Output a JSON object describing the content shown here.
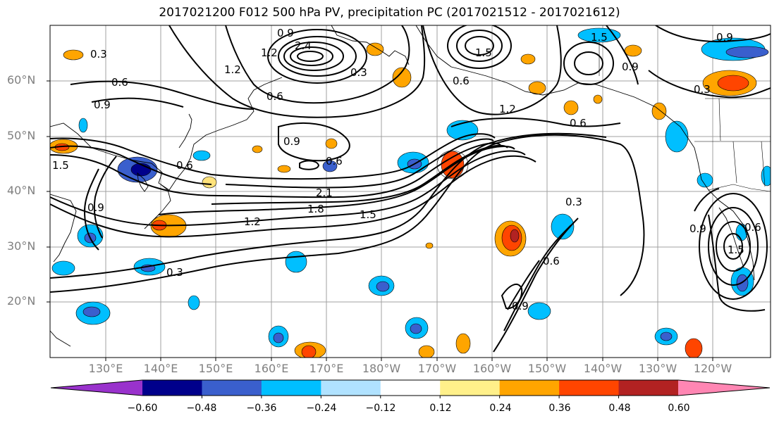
{
  "title": "2017021200 F012 500 hPa PV, precipitation PC (2017021512 - 2017021612)",
  "lat_labels": [
    "60°N",
    "50°N",
    "40°N",
    "30°N",
    "20°N"
  ],
  "lon_labels": [
    "130°E",
    "140°E",
    "150°E",
    "160°E",
    "170°E",
    "180°W",
    "170°W",
    "160°W",
    "150°W",
    "140°W",
    "130°W",
    "120°W"
  ],
  "colorbar": {
    "ticks": [
      "−0.60",
      "−0.48",
      "−0.36",
      "−0.24",
      "−0.12",
      "0.12",
      "0.24",
      "0.36",
      "0.48",
      "0.60"
    ],
    "colors": [
      "#9932cc",
      "#00008b",
      "#3a5fcd",
      "#00bfff",
      "#b0e2ff",
      "#ffffff",
      "#fff08a",
      "#ffa500",
      "#ff4500",
      "#b22222",
      "#ff86b3"
    ]
  },
  "contour_labels": {
    "c1": "0.3",
    "c2": "0.6",
    "c3": "0.9",
    "c4": "0.9",
    "c5": "1.2",
    "c6": "0.6",
    "c7": "2.4",
    "c8": "0.3",
    "c9": "1.5",
    "c10": "0.9",
    "c11": "1.2",
    "c12": "0.6",
    "c13": "1.5",
    "c14": "0.9",
    "c15": "0.6",
    "c16": "2.1",
    "c17": "1.8",
    "c18": "1.5",
    "c19": "1.2",
    "c20": "0.3",
    "c21": "0.3",
    "c22": "0.6",
    "c23": "0.9",
    "c24": "1.5",
    "c25": "0.9",
    "c26": "0.6",
    "c27": "0.9",
    "c28": "1.2",
    "c29": "0.3",
    "c30": "0.6",
    "c31": "1.5",
    "c32": "0.9",
    "c33": "0.6"
  }
}
